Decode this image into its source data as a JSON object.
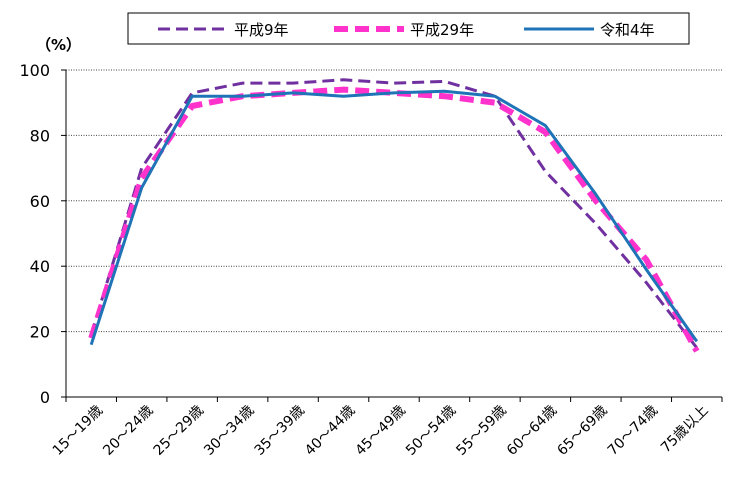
{
  "chart_data": {
    "type": "line",
    "ylabel_unit": "（%）",
    "categories": [
      "15～19歳",
      "20～24歳",
      "25～29歳",
      "30～34歳",
      "35～39歳",
      "40～44歳",
      "45～49歳",
      "50～54歳",
      "55～59歳",
      "60～64歳",
      "65～69歳",
      "70～74歳",
      "75歳以上"
    ],
    "ylim": [
      0,
      100
    ],
    "yticks": [
      0,
      20,
      40,
      60,
      80,
      100
    ],
    "grid": true,
    "legend_position": "top",
    "series": [
      {
        "name": "平成9年",
        "color": "#7030a0",
        "style": "dashed",
        "values": [
          19,
          70,
          93,
          96,
          96,
          97,
          96,
          96.5,
          92,
          69,
          53,
          35,
          15
        ]
      },
      {
        "name": "平成29年",
        "color": "#ff33cc",
        "style": "dashed-thick",
        "values": [
          18,
          67,
          89,
          92,
          93,
          94,
          93,
          92,
          90,
          81,
          60,
          42,
          14
        ]
      },
      {
        "name": "令和4年",
        "color": "#1f73b7",
        "style": "solid",
        "values": [
          16,
          64,
          92,
          92,
          93,
          92,
          93,
          93.5,
          92,
          83,
          62,
          39,
          17
        ]
      }
    ]
  }
}
